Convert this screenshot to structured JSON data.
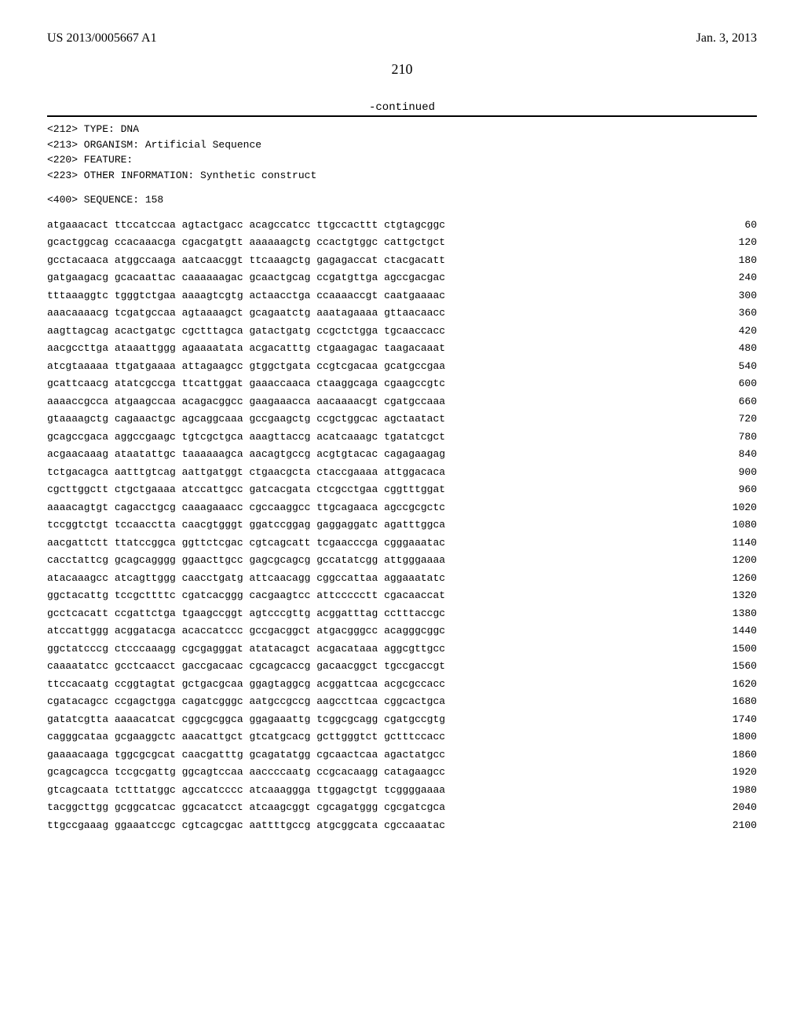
{
  "header": {
    "pub_number": "US 2013/0005667 A1",
    "pub_date": "Jan. 3, 2013"
  },
  "page_number": "210",
  "continued_label": "-continued",
  "meta": {
    "line212": "<212> TYPE: DNA",
    "line213": "<213> ORGANISM: Artificial Sequence",
    "line220": "<220> FEATURE:",
    "line223": "<223> OTHER INFORMATION: Synthetic construct",
    "line400": "<400> SEQUENCE: 158"
  },
  "sequence": [
    {
      "seq": "atgaaacact ttccatccaa agtactgacc acagccatcc ttgccacttt ctgtagcggc",
      "num": "60"
    },
    {
      "seq": "gcactggcag ccacaaacga cgacgatgtt aaaaaagctg ccactgtggc cattgctgct",
      "num": "120"
    },
    {
      "seq": "gcctacaaca atggccaaga aatcaacggt ttcaaagctg gagagaccat ctacgacatt",
      "num": "180"
    },
    {
      "seq": "gatgaagacg gcacaattac caaaaaagac gcaactgcag ccgatgttga agccgacgac",
      "num": "240"
    },
    {
      "seq": "tttaaaggtc tgggtctgaa aaaagtcgtg actaacctga ccaaaaccgt caatgaaaac",
      "num": "300"
    },
    {
      "seq": "aaacaaaacg tcgatgccaa agtaaaagct gcagaatctg aaatagaaaa gttaacaacc",
      "num": "360"
    },
    {
      "seq": "aagttagcag acactgatgc cgctttagca gatactgatg ccgctctgga tgcaaccacc",
      "num": "420"
    },
    {
      "seq": "aacgccttga ataaattggg agaaaatata acgacatttg ctgaagagac taagacaaat",
      "num": "480"
    },
    {
      "seq": "atcgtaaaaa ttgatgaaaa attagaagcc gtggctgata ccgtcgacaa gcatgccgaa",
      "num": "540"
    },
    {
      "seq": "gcattcaacg atatcgccga ttcattggat gaaaccaaca ctaaggcaga cgaagccgtc",
      "num": "600"
    },
    {
      "seq": "aaaaccgcca atgaagccaa acagacggcc gaagaaacca aacaaaacgt cgatgccaaa",
      "num": "660"
    },
    {
      "seq": "gtaaaagctg cagaaactgc agcaggcaaa gccgaagctg ccgctggcac agctaatact",
      "num": "720"
    },
    {
      "seq": "gcagccgaca aggccgaagc tgtcgctgca aaagttaccg acatcaaagc tgatatcgct",
      "num": "780"
    },
    {
      "seq": "acgaacaaag ataatattgc taaaaaagca aacagtgccg acgtgtacac cagagaagag",
      "num": "840"
    },
    {
      "seq": "tctgacagca aatttgtcag aattgatggt ctgaacgcta ctaccgaaaa attggacaca",
      "num": "900"
    },
    {
      "seq": "cgcttggctt ctgctgaaaa atccattgcc gatcacgata ctcgcctgaa cggtttggat",
      "num": "960"
    },
    {
      "seq": "aaaacagtgt cagacctgcg caaagaaacc cgccaaggcc ttgcagaaca agccgcgctc",
      "num": "1020"
    },
    {
      "seq": "tccggtctgt tccaacctta caacgtgggt ggatccggag gaggaggatc agatttggca",
      "num": "1080"
    },
    {
      "seq": "aacgattctt ttatccggca ggttctcgac cgtcagcatt tcgaacccga cgggaaatac",
      "num": "1140"
    },
    {
      "seq": "cacctattcg gcagcagggg ggaacttgcc gagcgcagcg gccatatcgg attgggaaaa",
      "num": "1200"
    },
    {
      "seq": "atacaaagcc atcagttggg caacctgatg attcaacagg cggccattaa aggaaatatc",
      "num": "1260"
    },
    {
      "seq": "ggctacattg tccgcttttc cgatcacggg cacgaagtcc attccccctt cgacaaccat",
      "num": "1320"
    },
    {
      "seq": "gcctcacatt ccgattctga tgaagccggt agtcccgttg acggatttag cctttaccgc",
      "num": "1380"
    },
    {
      "seq": "atccattggg acggatacga acaccatccc gccgacggct atgacgggcc acagggcggc",
      "num": "1440"
    },
    {
      "seq": "ggctatcccg ctcccaaagg cgcgagggat atatacagct acgacataaa aggcgttgcc",
      "num": "1500"
    },
    {
      "seq": "caaaatatcc gcctcaacct gaccgacaac cgcagcaccg gacaacggct tgccgaccgt",
      "num": "1560"
    },
    {
      "seq": "ttccacaatg ccggtagtat gctgacgcaa ggagtaggcg acggattcaa acgcgccacc",
      "num": "1620"
    },
    {
      "seq": "cgatacagcc ccgagctgga cagatcgggc aatgccgccg aagccttcaa cggcactgca",
      "num": "1680"
    },
    {
      "seq": "gatatcgtta aaaacatcat cggcgcggca ggagaaattg tcggcgcagg cgatgccgtg",
      "num": "1740"
    },
    {
      "seq": "cagggcataa gcgaaggctc aaacattgct gtcatgcacg gcttgggtct gctttccacc",
      "num": "1800"
    },
    {
      "seq": "gaaaacaaga tggcgcgcat caacgatttg gcagatatgg cgcaactcaa agactatgcc",
      "num": "1860"
    },
    {
      "seq": "gcagcagcca tccgcgattg ggcagtccaa aaccccaatg ccgcacaagg catagaagcc",
      "num": "1920"
    },
    {
      "seq": "gtcagcaata tctttatggc agccatcccc atcaaaggga ttggagctgt tcggggaaaa",
      "num": "1980"
    },
    {
      "seq": "tacggcttgg gcggcatcac ggcacatcct atcaagcggt cgcagatggg cgcgatcgca",
      "num": "2040"
    },
    {
      "seq": "ttgccgaaag ggaaatccgc cgtcagcgac aattttgccg atgcggcata cgccaaatac",
      "num": "2100"
    }
  ]
}
